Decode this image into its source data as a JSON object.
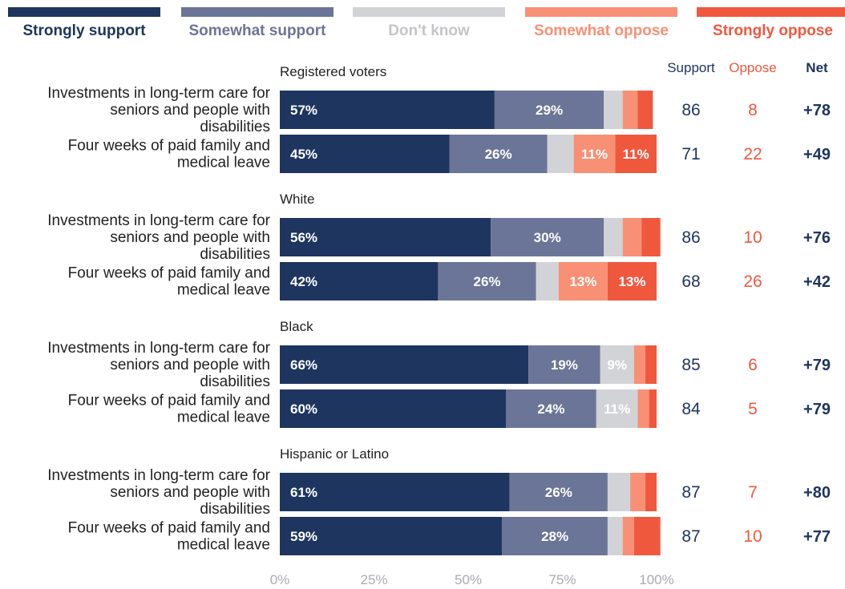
{
  "colors": {
    "strongly_support": "#1e3560",
    "somewhat_support": "#6b7597",
    "dont_know": "#d2d3d6",
    "somewhat_oppose": "#f79075",
    "strongly_oppose": "#f0583e",
    "dont_know_text": "#c4c5c8",
    "navy_text": "#1e3560",
    "oppose_text": "#f0583e",
    "bar_label": "#ffffff",
    "axis_text": "#a8abb2",
    "body_text": "#222222"
  },
  "chart_data": {
    "type": "bar",
    "orientation": "horizontal",
    "stacked": true,
    "legend_position": "top",
    "xlim": [
      0,
      100
    ],
    "x_ticks": [
      "0%",
      "25%",
      "50%",
      "75%",
      "100%"
    ],
    "series": [
      {
        "name": "Strongly support",
        "key": "strongly_support"
      },
      {
        "name": "Somewhat support",
        "key": "somewhat_support"
      },
      {
        "name": "Don't know",
        "key": "dont_know"
      },
      {
        "name": "Somewhat oppose",
        "key": "somewhat_oppose"
      },
      {
        "name": "Strongly oppose",
        "key": "strongly_oppose"
      }
    ],
    "column_headers": {
      "support": "Support",
      "oppose": "Oppose",
      "net": "Net"
    },
    "groups": [
      {
        "name": "Registered voters",
        "rows": [
          {
            "label": [
              "Investments in long-term care for",
              "seniors and people with",
              "disabilities"
            ],
            "values": [
              57,
              29,
              5,
              4,
              4
            ],
            "labels": [
              "57%",
              "29%",
              "",
              "",
              ""
            ],
            "support": "86",
            "oppose": "8",
            "net": "+78"
          },
          {
            "label": [
              "Four weeks of paid family and",
              "medical leave"
            ],
            "values": [
              45,
              26,
              7,
              11,
              11
            ],
            "labels": [
              "45%",
              "26%",
              "",
              "11%",
              "11%"
            ],
            "support": "71",
            "oppose": "22",
            "net": "+49"
          }
        ]
      },
      {
        "name": "White",
        "rows": [
          {
            "label": [
              "Investments in long-term care for",
              "seniors and people with",
              "disabilities"
            ],
            "values": [
              56,
              30,
              5,
              5,
              5
            ],
            "labels": [
              "56%",
              "30%",
              "",
              "",
              ""
            ],
            "support": "86",
            "oppose": "10",
            "net": "+76"
          },
          {
            "label": [
              "Four weeks of paid family and",
              "medical leave"
            ],
            "values": [
              42,
              26,
              6,
              13,
              13
            ],
            "labels": [
              "42%",
              "26%",
              "",
              "13%",
              "13%"
            ],
            "support": "68",
            "oppose": "26",
            "net": "+42"
          }
        ]
      },
      {
        "name": "Black",
        "rows": [
          {
            "label": [
              "Investments in long-term care for",
              "seniors and people with",
              "disabilities"
            ],
            "values": [
              66,
              19,
              9,
              3,
              3
            ],
            "labels": [
              "66%",
              "19%",
              "9%",
              "",
              ""
            ],
            "support": "85",
            "oppose": "6",
            "net": "+79"
          },
          {
            "label": [
              "Four weeks of paid family and",
              "medical leave"
            ],
            "values": [
              60,
              24,
              11,
              3,
              2
            ],
            "labels": [
              "60%",
              "24%",
              "11%",
              "",
              ""
            ],
            "support": "84",
            "oppose": "5",
            "net": "+79"
          }
        ]
      },
      {
        "name": "Hispanic or Latino",
        "rows": [
          {
            "label": [
              "Investments in long-term care for",
              "seniors and people with",
              "disabilities"
            ],
            "values": [
              61,
              26,
              6,
              4,
              3
            ],
            "labels": [
              "61%",
              "26%",
              "",
              "",
              ""
            ],
            "support": "87",
            "oppose": "7",
            "net": "+80"
          },
          {
            "label": [
              "Four weeks of paid family and",
              "medical leave"
            ],
            "values": [
              59,
              28,
              4,
              3,
              7
            ],
            "labels": [
              "59%",
              "28%",
              "",
              "",
              ""
            ],
            "support": "87",
            "oppose": "10",
            "net": "+77"
          }
        ]
      }
    ]
  }
}
